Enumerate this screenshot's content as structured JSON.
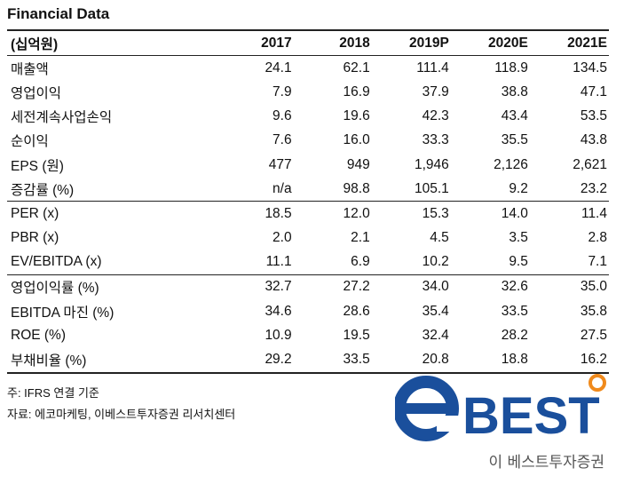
{
  "title": "Financial Data",
  "header": [
    "(십억원)",
    "2017",
    "2018",
    "2019P",
    "2020E",
    "2021E"
  ],
  "rows": [
    {
      "label": "매출액",
      "values": [
        "24.1",
        "62.1",
        "111.4",
        "118.9",
        "134.5"
      ]
    },
    {
      "label": "영업이익",
      "values": [
        "7.9",
        "16.9",
        "37.9",
        "38.8",
        "47.1"
      ]
    },
    {
      "label": "세전계속사업손익",
      "values": [
        "9.6",
        "19.6",
        "42.3",
        "43.4",
        "53.5"
      ]
    },
    {
      "label": "순이익",
      "values": [
        "7.6",
        "16.0",
        "33.3",
        "35.5",
        "43.8"
      ]
    },
    {
      "label": "EPS (원)",
      "values": [
        "477",
        "949",
        "1,946",
        "2,126",
        "2,621"
      ]
    },
    {
      "label": "증감률 (%)",
      "values": [
        "n/a",
        "98.8",
        "105.1",
        "9.2",
        "23.2"
      ]
    },
    {
      "label": "PER (x)",
      "values": [
        "18.5",
        "12.0",
        "15.3",
        "14.0",
        "11.4"
      ]
    },
    {
      "label": "PBR (x)",
      "values": [
        "2.0",
        "2.1",
        "4.5",
        "3.5",
        "2.8"
      ]
    },
    {
      "label": "EV/EBITDA (x)",
      "values": [
        "11.1",
        "6.9",
        "10.2",
        "9.5",
        "7.1"
      ]
    },
    {
      "label": "영업이익률 (%)",
      "values": [
        "32.7",
        "27.2",
        "34.0",
        "32.6",
        "35.0"
      ]
    },
    {
      "label": "EBITDA 마진 (%)",
      "values": [
        "34.6",
        "28.6",
        "35.4",
        "33.5",
        "35.8"
      ]
    },
    {
      "label": "ROE (%)",
      "values": [
        "10.9",
        "19.5",
        "32.4",
        "28.2",
        "27.5"
      ]
    },
    {
      "label": "부채비율 (%)",
      "values": [
        "29.2",
        "33.5",
        "20.8",
        "18.8",
        "16.2"
      ]
    }
  ],
  "notes": [
    "주: IFRS 연결 기준",
    "자료: 에코마케팅, 이베스트투자증권 리서치센터"
  ],
  "logo": {
    "main": "BEST",
    "sub": "이 베스트투자증권",
    "brand_color": "#1a4f9c",
    "accent_color": "#f08a1c",
    "sub_color": "#555555"
  }
}
